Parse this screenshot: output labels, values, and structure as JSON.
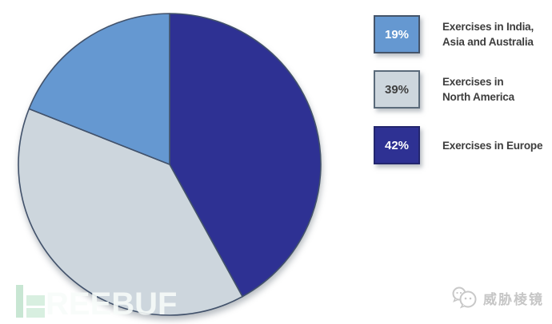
{
  "chart_data": {
    "type": "pie",
    "title": "",
    "start_angle_deg": 0,
    "direction": "clockwise",
    "legend_position": "right",
    "series": [
      {
        "name": "Exercises in Europe",
        "value": 42,
        "percent_label": "42%",
        "color": "#2E3193"
      },
      {
        "name": "Exercises in North America",
        "value": 39,
        "percent_label": "39%",
        "color": "#CDD6DD"
      },
      {
        "name": "Exercises in India, Asia and Australia",
        "value": 19,
        "percent_label": "19%",
        "color": "#6598D1"
      }
    ],
    "slice_border_color": "#42526B"
  },
  "legend": {
    "label_color": "#3D3D3D",
    "items": [
      {
        "percent": "19%",
        "label_lines": [
          "Exercises in India,",
          "Asia and Australia"
        ],
        "color": "#6598D1",
        "text_color": "#FFFFFF",
        "border_color": "#44546A"
      },
      {
        "percent": "39%",
        "label_lines": [
          "Exercises in",
          "North America"
        ],
        "color": "#CDD6DD",
        "text_color": "#3F3F3F",
        "border_color": "#5A6A7A"
      },
      {
        "percent": "42%",
        "label_lines": [
          "Exercises in Europe"
        ],
        "color": "#2E3193",
        "text_color": "#FFFFFF",
        "border_color": "#23266E"
      }
    ]
  },
  "watermarks": {
    "freebuf": {
      "visible_letters": "REEBUF",
      "mark_color": "#C8E6D3"
    },
    "wechat": {
      "account_name": "威胁棱镜"
    }
  }
}
